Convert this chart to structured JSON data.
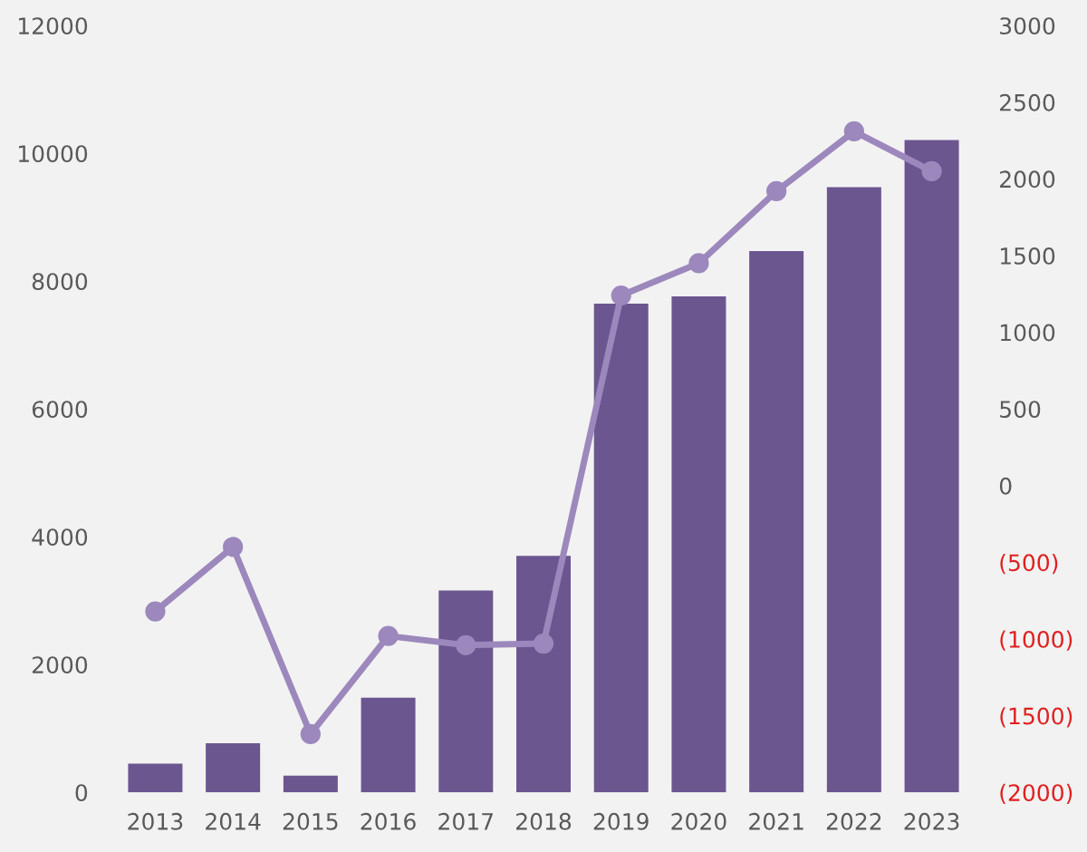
{
  "chart_data": {
    "type": "bar",
    "categories": [
      "2013",
      "2014",
      "2015",
      "2016",
      "2017",
      "2018",
      "2019",
      "2020",
      "2021",
      "2022",
      "2023"
    ],
    "series": [
      {
        "color": "#6c5690",
        "values": [
          450,
          770,
          260,
          1480,
          3160,
          3700,
          7650,
          7760,
          8470,
          9470,
          10210
        ]
      },
      {
        "type": "line",
        "axis": "y2",
        "color": "#9c88bc",
        "marker": "circle",
        "values": [
          -820,
          -400,
          -1620,
          -980,
          -1040,
          -1030,
          1240,
          1450,
          1920,
          2310,
          2050
        ]
      }
    ],
    "ylim": [
      0,
      12000
    ],
    "yticks": [
      0,
      2000,
      4000,
      6000,
      8000,
      10000,
      12000
    ],
    "y2lim": [
      -2000,
      3000
    ],
    "y2ticks": [
      {
        "value": -2000,
        "label": "(2000)"
      },
      {
        "value": -1500,
        "label": "(1500)"
      },
      {
        "value": -1000,
        "label": "(1000)"
      },
      {
        "value": -500,
        "label": "(500)"
      },
      0,
      500,
      1000,
      1500,
      2000,
      2500,
      3000
    ],
    "grid": false,
    "legend": false
  }
}
